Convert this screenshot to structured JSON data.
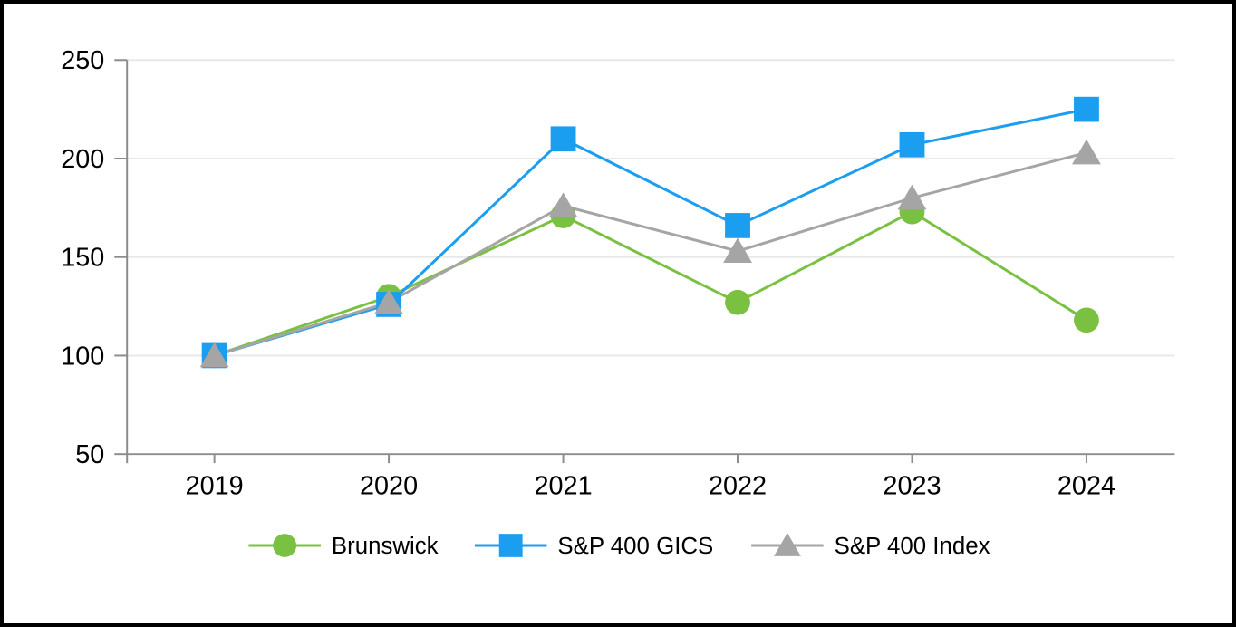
{
  "chart_data": {
    "type": "line",
    "categories": [
      "2019",
      "2020",
      "2021",
      "2022",
      "2023",
      "2024"
    ],
    "series": [
      {
        "name": "Brunswick",
        "marker": "circle",
        "color": "#7AC142",
        "values": [
          100,
          130,
          171,
          127,
          173,
          118
        ]
      },
      {
        "name": "S&P 400 GICS",
        "marker": "square",
        "color": "#1B9DF0",
        "values": [
          100,
          126,
          210,
          166,
          207,
          225
        ]
      },
      {
        "name": "S&P 400 Index",
        "marker": "triangle",
        "color": "#A5A5A5",
        "values": [
          100,
          127,
          176,
          153,
          180,
          203
        ]
      }
    ],
    "title": "",
    "xlabel": "",
    "ylabel": "",
    "ylim": [
      50,
      250
    ],
    "yticks": [
      50,
      100,
      150,
      200,
      250
    ],
    "grid": true,
    "legend_position": "bottom-center"
  },
  "style": {
    "background": "#FFFFFF",
    "border_color": "#000000",
    "axis_color": "#8C8C8C",
    "gridline_color": "#E8E8E8",
    "text_color": "#000000"
  }
}
